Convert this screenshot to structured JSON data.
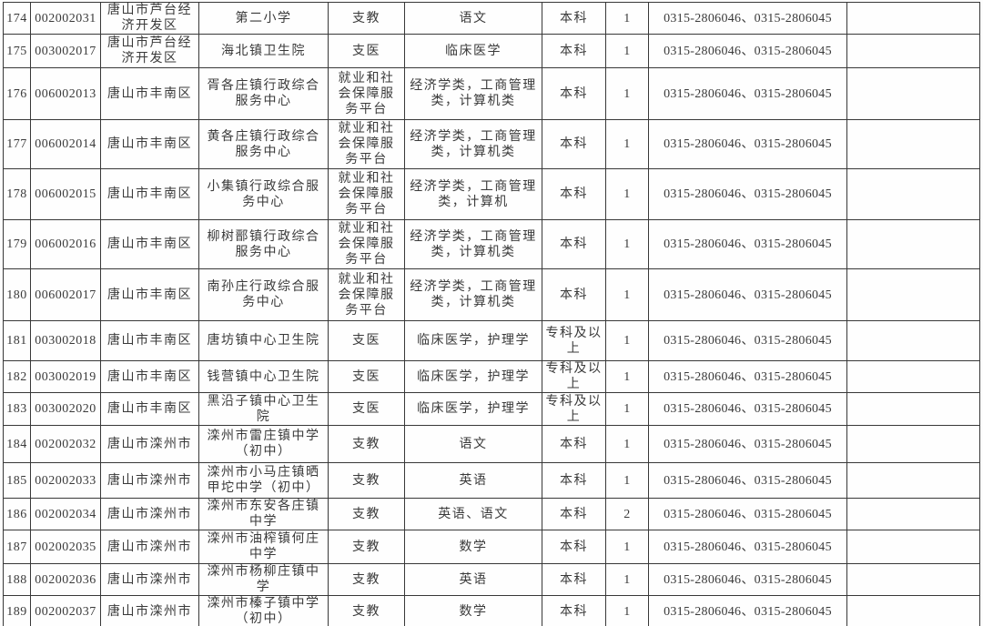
{
  "table": {
    "description_columns": [
      "row_no",
      "code",
      "region",
      "institution",
      "category",
      "subject",
      "education",
      "count",
      "phone",
      "note"
    ],
    "phone_shared": "0315-2806046、0315-2806045",
    "rows": [
      {
        "no": "174",
        "code": "002002031",
        "region": "唐山市芦台经济开发区",
        "institution": "第二小学",
        "category": "支教",
        "subject": "语文",
        "education": "本科",
        "count": "1",
        "phone": "0315-2806046、0315-2806045",
        "note": ""
      },
      {
        "no": "175",
        "code": "003002017",
        "region": "唐山市芦台经济开发区",
        "institution": "海北镇卫生院",
        "category": "支医",
        "subject": "临床医学",
        "education": "本科",
        "count": "1",
        "phone": "0315-2806046、0315-2806045",
        "note": ""
      },
      {
        "no": "176",
        "code": "006002013",
        "region": "唐山市丰南区",
        "institution": "胥各庄镇行政综合服务中心",
        "category": "就业和社会保障服务平台",
        "subject": "经济学类，工商管理类，计算机类",
        "education": "本科",
        "count": "1",
        "phone": "0315-2806046、0315-2806045",
        "note": ""
      },
      {
        "no": "177",
        "code": "006002014",
        "region": "唐山市丰南区",
        "institution": "黄各庄镇行政综合服务中心",
        "category": "就业和社会保障服务平台",
        "subject": "经济学类，工商管理类，计算机类",
        "education": "本科",
        "count": "1",
        "phone": "0315-2806046、0315-2806045",
        "note": ""
      },
      {
        "no": "178",
        "code": "006002015",
        "region": "唐山市丰南区",
        "institution": "小集镇行政综合服务中心",
        "category": "就业和社会保障服务平台",
        "subject": "经济学类，工商管理类，计算机",
        "education": "本科",
        "count": "1",
        "phone": "0315-2806046、0315-2806045",
        "note": ""
      },
      {
        "no": "179",
        "code": "006002016",
        "region": "唐山市丰南区",
        "institution": "柳树鄑镇行政综合服务中心",
        "category": "就业和社会保障服务平台",
        "subject": "经济学类，工商管理类，计算机类",
        "education": "本科",
        "count": "1",
        "phone": "0315-2806046、0315-2806045",
        "note": ""
      },
      {
        "no": "180",
        "code": "006002017",
        "region": "唐山市丰南区",
        "institution": "南孙庄行政综合服务中心",
        "category": "就业和社会保障服务平台",
        "subject": "经济学类，工商管理类，计算机类",
        "education": "本科",
        "count": "1",
        "phone": "0315-2806046、0315-2806045",
        "note": ""
      },
      {
        "no": "181",
        "code": "003002018",
        "region": "唐山市丰南区",
        "institution": "唐坊镇中心卫生院",
        "category": "支医",
        "subject": "临床医学，护理学",
        "education": "专科及以上",
        "count": "1",
        "phone": "0315-2806046、0315-2806045",
        "note": ""
      },
      {
        "no": "182",
        "code": "003002019",
        "region": "唐山市丰南区",
        "institution": "钱营镇中心卫生院",
        "category": "支医",
        "subject": "临床医学，护理学",
        "education": "专科及以上",
        "count": "1",
        "phone": "0315-2806046、0315-2806045",
        "note": ""
      },
      {
        "no": "183",
        "code": "003002020",
        "region": "唐山市丰南区",
        "institution": "黑沿子镇中心卫生院",
        "category": "支医",
        "subject": "临床医学，护理学",
        "education": "专科及以上",
        "count": "1",
        "phone": "0315-2806046、0315-2806045",
        "note": ""
      },
      {
        "no": "184",
        "code": "002002032",
        "region": "唐山市滦州市",
        "institution": "滦州市雷庄镇中学（初中）",
        "category": "支教",
        "subject": "语文",
        "education": "本科",
        "count": "1",
        "phone": "0315-2806046、0315-2806045",
        "note": ""
      },
      {
        "no": "185",
        "code": "002002033",
        "region": "唐山市滦州市",
        "institution": "滦州市小马庄镇晒甲坨中学（初中）",
        "category": "支教",
        "subject": "英语",
        "education": "本科",
        "count": "1",
        "phone": "0315-2806046、0315-2806045",
        "note": ""
      },
      {
        "no": "186",
        "code": "002002034",
        "region": "唐山市滦州市",
        "institution": "滦州市东安各庄镇中学",
        "category": "支教",
        "subject": "英语、语文",
        "education": "本科",
        "count": "2",
        "phone": "0315-2806046、0315-2806045",
        "note": ""
      },
      {
        "no": "187",
        "code": "002002035",
        "region": "唐山市滦州市",
        "institution": "滦州市油榨镇何庄中学",
        "category": "支教",
        "subject": "数学",
        "education": "本科",
        "count": "1",
        "phone": "0315-2806046、0315-2806045",
        "note": ""
      },
      {
        "no": "188",
        "code": "002002036",
        "region": "唐山市滦州市",
        "institution": "滦州市杨柳庄镇中学",
        "category": "支教",
        "subject": "英语",
        "education": "本科",
        "count": "1",
        "phone": "0315-2806046、0315-2806045",
        "note": ""
      },
      {
        "no": "189",
        "code": "002002037",
        "region": "唐山市滦州市",
        "institution": "滦州市榛子镇中学（初中）",
        "category": "支教",
        "subject": "数学",
        "education": "本科",
        "count": "1",
        "phone": "0315-2806046、0315-2806045",
        "note": ""
      }
    ]
  }
}
